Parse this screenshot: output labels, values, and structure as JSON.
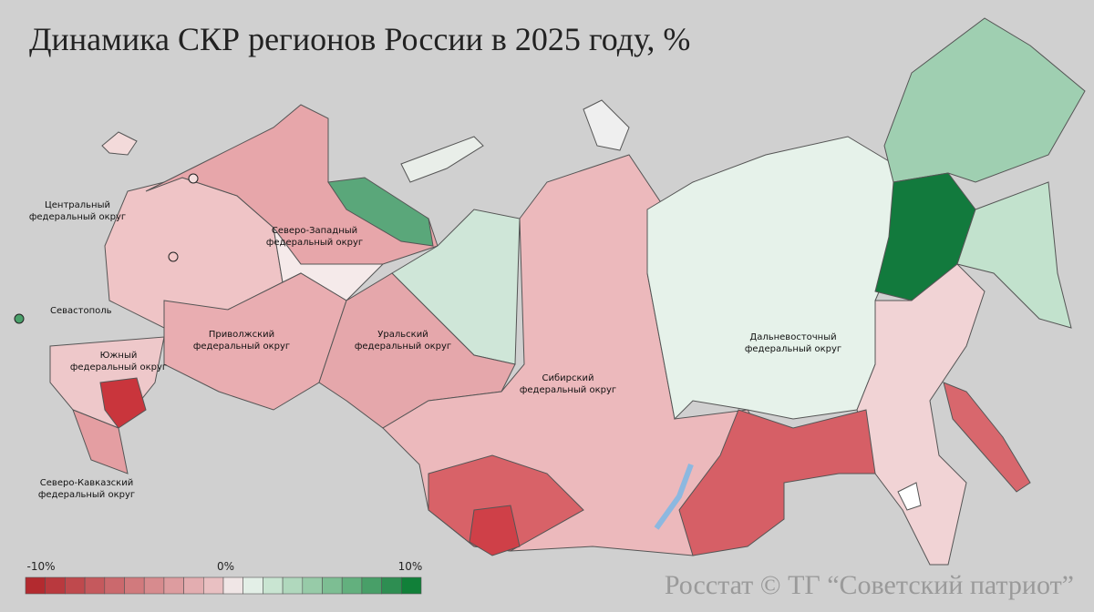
{
  "title": "Динамика СКР регионов России в 2025 году, %",
  "labels": [
    {
      "lines": [
        "Центральный",
        "федеральный округ"
      ]
    },
    {
      "lines": [
        "Северо-Западный",
        "федеральный округ"
      ]
    },
    {
      "lines": [
        "Приволжский",
        "федеральный округ"
      ]
    },
    {
      "lines": [
        "Уральский",
        "федеральный округ"
      ]
    },
    {
      "lines": [
        "Южный",
        "федеральный округ"
      ]
    },
    {
      "lines": [
        "Сибирский",
        "федеральный округ"
      ]
    },
    {
      "lines": [
        "Дальневосточный",
        "федеральный округ"
      ]
    },
    {
      "lines": [
        "Северо-Кавказский",
        "федеральный округ"
      ]
    },
    {
      "lines": [
        "Севастополь"
      ]
    }
  ],
  "legend": {
    "ticks": [
      {
        "value": -10,
        "label": "-10%"
      },
      {
        "value": 0,
        "label": "0%"
      },
      {
        "value": 10,
        "label": "10%"
      }
    ],
    "colors": [
      "#b32a2f",
      "#b9393e",
      "#bf494d",
      "#c5595d",
      "#cb696d",
      "#d17a7d",
      "#d78b8e",
      "#dd9c9f",
      "#e3adb0",
      "#e9c0c2",
      "#f0e6e6",
      "#e3efe7",
      "#c9e5d2",
      "#b0d8bd",
      "#97cba8",
      "#7dbe93",
      "#63b07e",
      "#489f68",
      "#2e8e52",
      "#118039"
    ]
  },
  "source": "Росстат © ТГ “Советский патриот”"
}
